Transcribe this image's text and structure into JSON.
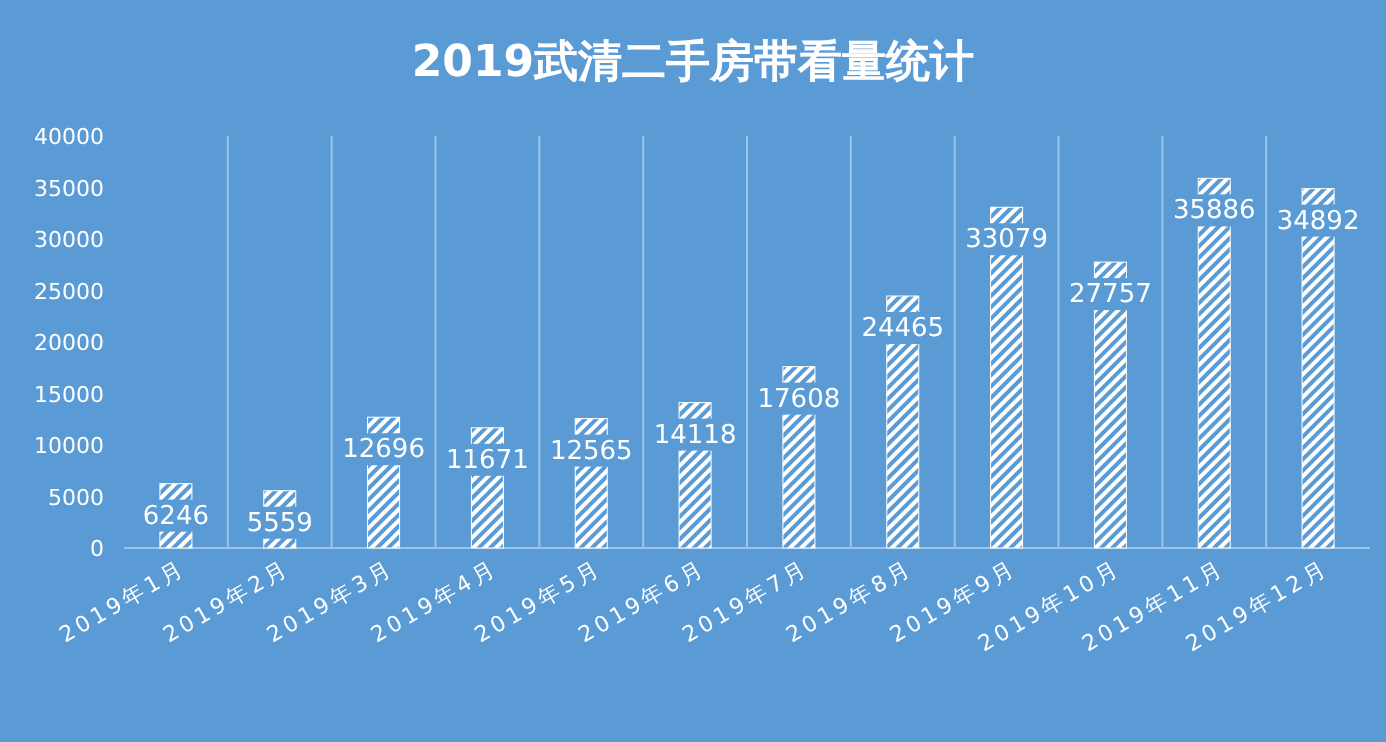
{
  "chart_data": {
    "type": "bar",
    "title": "2019武清二手房带看量统计",
    "categories": [
      "2019年1月",
      "2019年2月",
      "2019年3月",
      "2019年4月",
      "2019年5月",
      "2019年6月",
      "2019年7月",
      "2019年8月",
      "2019年9月",
      "2019年10月",
      "2019年11月",
      "2019年12月"
    ],
    "values": [
      6246,
      5559,
      12696,
      11671,
      12565,
      14118,
      17608,
      24465,
      33079,
      27757,
      35886,
      34892
    ],
    "color": "#ffffff",
    "ylim": [
      0,
      40000
    ],
    "yticks": [
      0,
      5000,
      10000,
      15000,
      20000,
      25000,
      30000,
      35000,
      40000
    ],
    "grid": "x",
    "data_labels": true
  }
}
